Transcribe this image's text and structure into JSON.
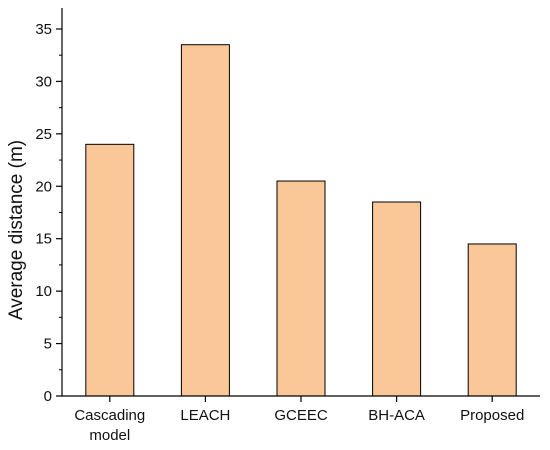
{
  "chart_data": {
    "type": "bar",
    "title": "",
    "xlabel": "",
    "ylabel": "Average distance (m)",
    "categories": [
      [
        "Cascading",
        "model"
      ],
      [
        "LEACH"
      ],
      [
        "GCEEC"
      ],
      [
        "BH-ACA"
      ],
      [
        "Proposed"
      ]
    ],
    "values": [
      24,
      33.5,
      20.5,
      18.5,
      14.5
    ],
    "ylim": [
      0,
      37
    ],
    "yticks": [
      0,
      5,
      10,
      15,
      20,
      25,
      30,
      35
    ],
    "grid": false,
    "legend": "none",
    "bar_color": "#FAC898",
    "bar_edge_color": "#000000"
  }
}
